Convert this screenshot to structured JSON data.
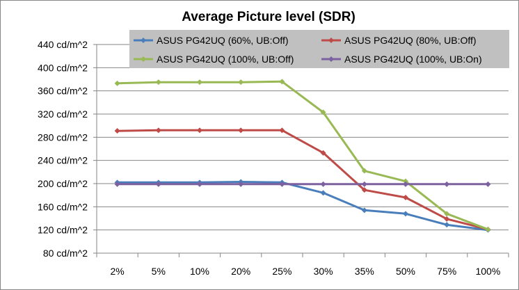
{
  "chart_data": {
    "type": "line",
    "title": "Average Picture level (SDR)",
    "xlabel": "",
    "ylabel": "",
    "categories": [
      "2%",
      "5%",
      "10%",
      "20%",
      "25%",
      "30%",
      "35%",
      "50%",
      "75%",
      "100%"
    ],
    "y_ticks": [
      "80 cd/m^2",
      "120 cd/m^2",
      "160 cd/m^2",
      "200 cd/m^2",
      "240 cd/m^2",
      "280 cd/m^2",
      "320 cd/m^2",
      "360 cd/m^2",
      "400 cd/m^2",
      "440 cd/m^2"
    ],
    "ylim": [
      80,
      440
    ],
    "grid": "horizontal",
    "legend_position": "top-right",
    "series": [
      {
        "name": "ASUS PG42UQ (60%, UB:Off)",
        "color": "#4a7ebb",
        "values": [
          202,
          202,
          202,
          203,
          202,
          184,
          154,
          148,
          129,
          120
        ]
      },
      {
        "name": "ASUS PG42UQ (80%, UB:Off)",
        "color": "#be4b48",
        "values": [
          291,
          292,
          292,
          292,
          292,
          253,
          189,
          176,
          139,
          121
        ]
      },
      {
        "name": "ASUS PG42UQ (100%, UB:Off)",
        "color": "#98b954",
        "values": [
          373,
          375,
          375,
          375,
          376,
          323,
          222,
          204,
          148,
          121
        ]
      },
      {
        "name": "ASUS PG42UQ (100%, UB:On)",
        "color": "#7d60a0",
        "values": [
          199,
          199,
          199,
          199,
          199,
          199,
          199,
          199,
          199,
          199
        ]
      }
    ]
  }
}
